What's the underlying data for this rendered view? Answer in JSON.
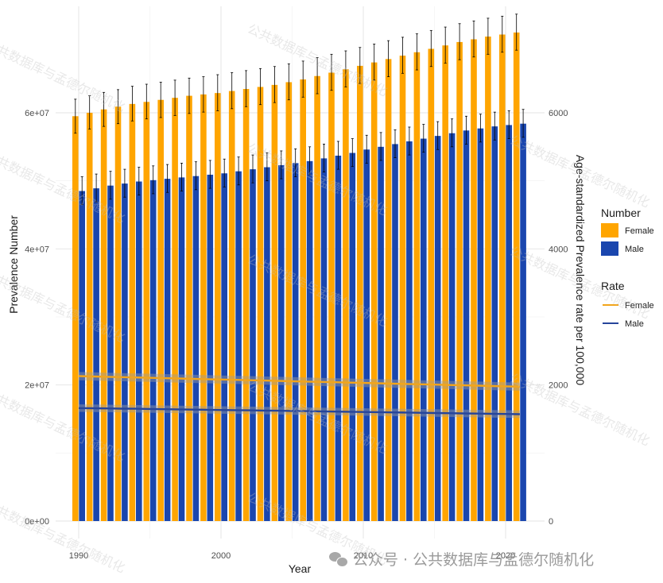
{
  "chart_data": {
    "type": "bar",
    "subtype": "grouped bar with dual-axis lines",
    "xlabel": "Year",
    "ylabel_left": "Prevalence Number",
    "ylabel_right": "Age-standardized Prevalence rate per 100,000",
    "x_ticks": [
      "1990",
      "2000",
      "2010",
      "2020"
    ],
    "y_left_ticks": [
      "0e+00",
      "2e+07",
      "4e+07",
      "6e+07"
    ],
    "y_right_ticks": [
      "0",
      "2000",
      "4000",
      "6000"
    ],
    "y_left_lim": [
      0,
      72000000
    ],
    "y_right_lim": [
      0,
      7200
    ],
    "x": [
      1990,
      1991,
      1992,
      1993,
      1994,
      1995,
      1996,
      1997,
      1998,
      1999,
      2000,
      2001,
      2002,
      2003,
      2004,
      2005,
      2006,
      2007,
      2008,
      2009,
      2010,
      2011,
      2012,
      2013,
      2014,
      2015,
      2016,
      2017,
      2018,
      2019,
      2020,
      2021
    ],
    "grid": true,
    "bar_series": [
      {
        "name": "Female",
        "color": "#FFA500",
        "values": [
          59500000,
          60000000,
          60500000,
          60900000,
          61300000,
          61600000,
          61900000,
          62200000,
          62500000,
          62700000,
          62900000,
          63200000,
          63500000,
          63800000,
          64100000,
          64500000,
          64900000,
          65400000,
          65900000,
          66400000,
          66900000,
          67400000,
          67900000,
          68400000,
          68900000,
          69400000,
          69900000,
          70400000,
          70800000,
          71200000,
          71500000,
          71800000
        ],
        "lower": [
          57000000,
          57600000,
          58000000,
          58400000,
          58800000,
          59100000,
          59300000,
          59600000,
          59900000,
          60100000,
          60300000,
          60600000,
          60900000,
          61200000,
          61500000,
          61900000,
          62300000,
          62800000,
          63300000,
          63800000,
          64300000,
          64800000,
          65300000,
          65800000,
          66300000,
          66800000,
          67300000,
          67800000,
          68200000,
          68600000,
          68900000,
          69200000
        ],
        "upper": [
          62000000,
          62500000,
          63000000,
          63400000,
          63900000,
          64200000,
          64500000,
          64800000,
          65100000,
          65300000,
          65600000,
          65900000,
          66200000,
          66500000,
          66800000,
          67200000,
          67600000,
          68100000,
          68600000,
          69100000,
          69600000,
          70100000,
          70600000,
          71100000,
          71600000,
          72100000,
          72600000,
          73100000,
          73500000,
          73900000,
          74200000,
          74500000
        ]
      },
      {
        "name": "Male",
        "color": "#1A46AE",
        "values": [
          48500000,
          48900000,
          49300000,
          49600000,
          49900000,
          50100000,
          50300000,
          50500000,
          50700000,
          50900000,
          51100000,
          51400000,
          51700000,
          52000000,
          52300000,
          52600000,
          52900000,
          53300000,
          53700000,
          54100000,
          54600000,
          55000000,
          55400000,
          55800000,
          56200000,
          56600000,
          57000000,
          57400000,
          57700000,
          58000000,
          58200000,
          58400000
        ],
        "lower": [
          46500000,
          46900000,
          47300000,
          47600000,
          47900000,
          48100000,
          48300000,
          48500000,
          48700000,
          48900000,
          49100000,
          49400000,
          49700000,
          50000000,
          50300000,
          50600000,
          50900000,
          51300000,
          51700000,
          52100000,
          52600000,
          53000000,
          53400000,
          53800000,
          54200000,
          54600000,
          55000000,
          55400000,
          55700000,
          56000000,
          56200000,
          56400000
        ],
        "upper": [
          50600000,
          51000000,
          51400000,
          51700000,
          52000000,
          52200000,
          52400000,
          52600000,
          52800000,
          53000000,
          53200000,
          53500000,
          53800000,
          54100000,
          54400000,
          54700000,
          55000000,
          55400000,
          55800000,
          56200000,
          56700000,
          57100000,
          57500000,
          57900000,
          58300000,
          58700000,
          59100000,
          59500000,
          59800000,
          60100000,
          60300000,
          60500000
        ]
      }
    ],
    "line_series": [
      {
        "name": "Female",
        "color": "#F2A51B",
        "values": [
          2130,
          2125,
          2120,
          2115,
          2110,
          2105,
          2100,
          2095,
          2090,
          2085,
          2080,
          2075,
          2070,
          2065,
          2060,
          2055,
          2050,
          2045,
          2040,
          2035,
          2030,
          2025,
          2020,
          2015,
          2010,
          2005,
          2000,
          1995,
          1990,
          1985,
          1980,
          1975
        ],
        "band_half_width": 60
      },
      {
        "name": "Male",
        "color": "#26459B",
        "values": [
          1660,
          1658,
          1655,
          1652,
          1650,
          1647,
          1644,
          1641,
          1638,
          1635,
          1632,
          1630,
          1627,
          1624,
          1621,
          1618,
          1615,
          1612,
          1609,
          1606,
          1603,
          1600,
          1597,
          1594,
          1591,
          1588,
          1585,
          1582,
          1579,
          1576,
          1573,
          1570
        ],
        "band_half_width": 55
      }
    ],
    "legend": {
      "placement": "right",
      "groups": [
        {
          "title": "Number",
          "items": [
            "Female",
            "Male"
          ]
        },
        {
          "title": "Rate",
          "items": [
            "Female",
            "Male"
          ]
        }
      ]
    }
  },
  "watermark": {
    "text": "公共数据库与孟德尔随机化",
    "credit": "公众号 · 公共数据库与孟德尔随机化"
  }
}
